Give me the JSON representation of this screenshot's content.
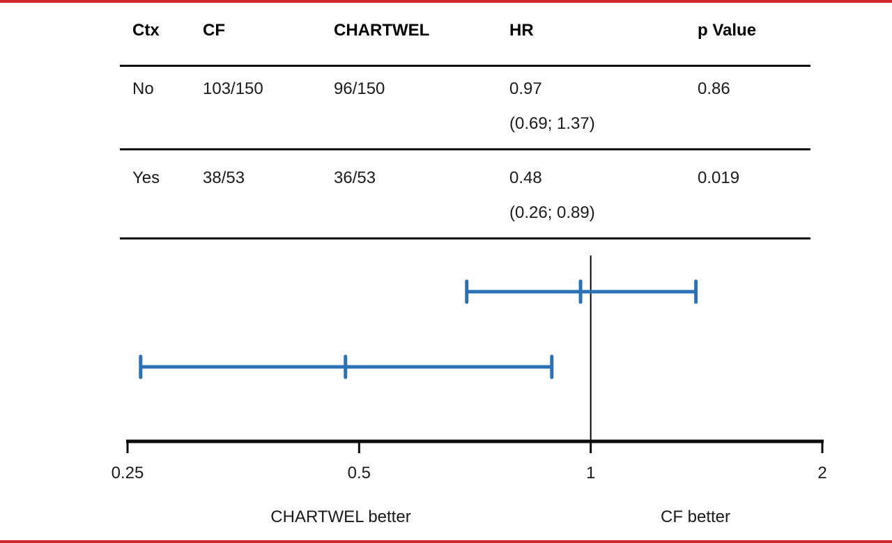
{
  "figure": {
    "accent_red": "#cf262d",
    "ci_blue": "#2a72b5",
    "axis_black": "#0d0d0d"
  },
  "table": {
    "headers": [
      "Ctx",
      "CF",
      "CHARTWEL",
      "HR",
      "p Value"
    ],
    "rows": [
      {
        "ctx": "No",
        "cf": "103/150",
        "chartwel": "96/150",
        "hr": "0.97",
        "hr_ci": "(0.69; 1.37)",
        "p": "0.86"
      },
      {
        "ctx": "Yes",
        "cf": "38/53",
        "chartwel": "36/53",
        "hr": "0.48",
        "hr_ci": "(0.26; 0.89)",
        "p": "0.019"
      }
    ]
  },
  "chart_data": {
    "type": "forest",
    "x_scale": "log2",
    "xlim": [
      0.25,
      2
    ],
    "x_ticks": [
      0.25,
      0.5,
      1,
      2
    ],
    "x_tick_labels": [
      "0.25",
      "0.5",
      "1",
      "2"
    ],
    "reference_line": 1,
    "series": [
      {
        "group": "No",
        "hr": 0.97,
        "ci_low": 0.69,
        "ci_high": 1.37,
        "p": 0.86
      },
      {
        "group": "Yes",
        "hr": 0.48,
        "ci_low": 0.26,
        "ci_high": 0.89,
        "p": 0.019
      }
    ],
    "direction_labels": {
      "left": "CHARTWEL better",
      "right": "CF better"
    },
    "legend": "none",
    "grid": false
  }
}
